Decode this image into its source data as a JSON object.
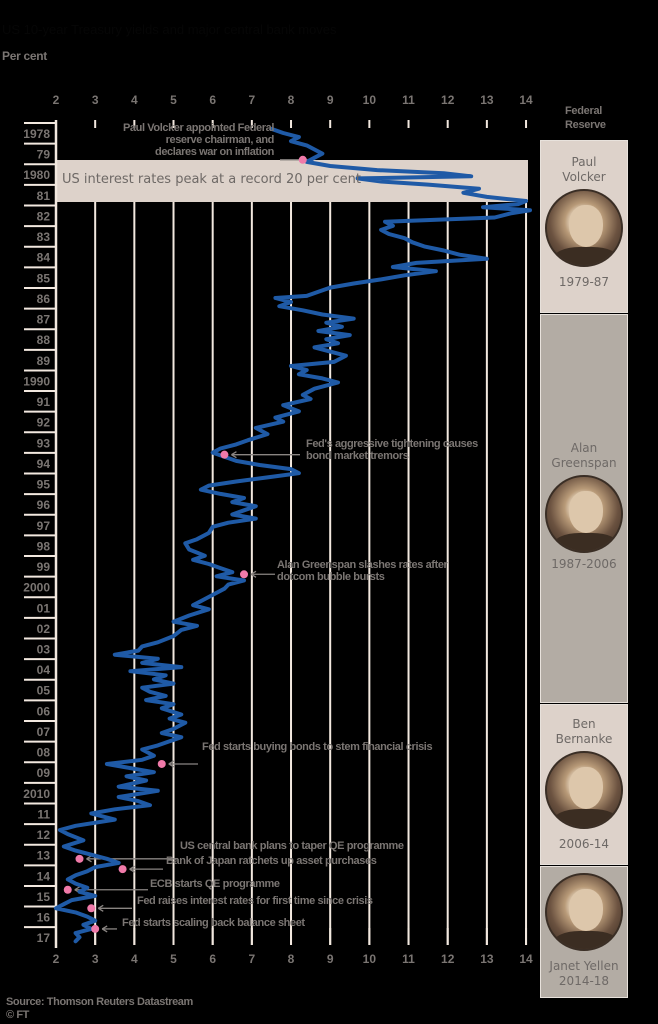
{
  "header": {
    "title": "US 10-year Treasury yields and major central bank moves",
    "unit_label": "Per cent"
  },
  "fed_header": {
    "line1": "Federal",
    "line2": "Reserve"
  },
  "band": {
    "label": "US interest rates peak at a record 20 per cent"
  },
  "panels": [
    {
      "name1": "Paul",
      "name2": "Volcker",
      "years": "1979-87"
    },
    {
      "name1": "Alan",
      "name2": "Greenspan",
      "years": "1987-2006"
    },
    {
      "name1": "Ben",
      "name2": "Bernanke",
      "years": "2006-14"
    },
    {
      "name1": "Janet Yellen",
      "name2": "",
      "years": "2014-18"
    }
  ],
  "annotations": [
    {
      "l1": "Paul Volcker appointed Federal",
      "l2": "reserve chairman, and",
      "l3": "declares war on inflation"
    },
    {
      "l1": "Fed's aggressive tightening causes",
      "l2": "bond market tremors"
    },
    {
      "l1": "Alan Greenspan slashes rates after",
      "l2": "dotcom bubble bursts"
    },
    {
      "l1": "Fed starts buying bonds to stem financial crisis"
    },
    {
      "l1": "US central bank plans to taper QE programme"
    },
    {
      "l1": "Bank of Japan ratchets up asset purchases"
    },
    {
      "l1": "ECB starts QE programme"
    },
    {
      "l1": "Fed raises interest rates for first time since crisis"
    },
    {
      "l1": "Fed starts scaling back balance sheet"
    }
  ],
  "footer": {
    "source": "Source: Thomson Reuters Datastream",
    "credit": "© FT"
  },
  "colors": {
    "line": "#1f5aa6",
    "marker": "#f07aa9",
    "grid": "#f2e8df",
    "band": "#ddd2ca",
    "panel_light": "#ddd2ca",
    "panel_dark": "#b3aca4",
    "text": "#7a7572"
  },
  "chart_data": {
    "type": "line",
    "orientation": "vertical-time (years top-to-bottom, value on x-axis)",
    "title": "",
    "xlabel": "Per cent",
    "ylabel": "Year",
    "xlim": [
      2,
      14
    ],
    "x_ticks": [
      2,
      3,
      4,
      5,
      6,
      7,
      8,
      9,
      10,
      11,
      12,
      13,
      14
    ],
    "y_tick_labels": [
      "1978",
      "79",
      "1980",
      "81",
      "82",
      "83",
      "84",
      "85",
      "86",
      "87",
      "88",
      "89",
      "1990",
      "91",
      "92",
      "93",
      "94",
      "95",
      "96",
      "97",
      "98",
      "99",
      "2000",
      "01",
      "02",
      "03",
      "04",
      "05",
      "06",
      "07",
      "08",
      "09",
      "2010",
      "11",
      "12",
      "13",
      "14",
      "15",
      "16",
      "17"
    ],
    "grid": true,
    "highlight_band": {
      "from": 1980.0,
      "to": 1981.9,
      "label": "US interest rates peak at a record 20 per cent"
    },
    "series": [
      {
        "name": "US 10-year Treasury yield",
        "points": [
          [
            1977.8,
            7.5
          ],
          [
            1978.0,
            7.8
          ],
          [
            1978.2,
            8.2
          ],
          [
            1978.4,
            8.0
          ],
          [
            1978.6,
            8.4
          ],
          [
            1978.8,
            8.6
          ],
          [
            1979.0,
            8.8
          ],
          [
            1979.2,
            8.6
          ],
          [
            1979.4,
            8.4
          ],
          [
            1979.6,
            9.0
          ],
          [
            1979.8,
            10.2
          ],
          [
            1979.95,
            11.9
          ],
          [
            1980.1,
            12.6
          ],
          [
            1980.2,
            9.7
          ],
          [
            1980.35,
            10.3
          ],
          [
            1980.5,
            11.5
          ],
          [
            1980.7,
            12.8
          ],
          [
            1980.9,
            12.4
          ],
          [
            1981.1,
            13.0
          ],
          [
            1981.3,
            14.0
          ],
          [
            1981.45,
            13.8
          ],
          [
            1981.6,
            12.9
          ],
          [
            1981.75,
            14.1
          ],
          [
            1981.9,
            13.6
          ],
          [
            1982.1,
            13.2
          ],
          [
            1982.3,
            10.4
          ],
          [
            1982.5,
            10.6
          ],
          [
            1982.7,
            10.3
          ],
          [
            1982.9,
            10.5
          ],
          [
            1983.1,
            10.9
          ],
          [
            1983.3,
            11.1
          ],
          [
            1983.5,
            11.4
          ],
          [
            1983.7,
            11.9
          ],
          [
            1983.9,
            12.3
          ],
          [
            1984.1,
            13.0
          ],
          [
            1984.3,
            11.2
          ],
          [
            1984.5,
            10.6
          ],
          [
            1984.7,
            11.7
          ],
          [
            1984.9,
            10.9
          ],
          [
            1985.1,
            10.3
          ],
          [
            1985.3,
            9.6
          ],
          [
            1985.5,
            9.0
          ],
          [
            1985.7,
            8.7
          ],
          [
            1985.9,
            8.4
          ],
          [
            1986.0,
            7.6
          ],
          [
            1986.2,
            8.0
          ],
          [
            1986.4,
            7.7
          ],
          [
            1986.6,
            8.3
          ],
          [
            1986.8,
            8.8
          ],
          [
            1987.0,
            9.6
          ],
          [
            1987.2,
            8.9
          ],
          [
            1987.4,
            9.3
          ],
          [
            1987.6,
            8.7
          ],
          [
            1987.8,
            9.5
          ],
          [
            1988.0,
            8.9
          ],
          [
            1988.2,
            9.2
          ],
          [
            1988.4,
            8.6
          ],
          [
            1988.6,
            9.0
          ],
          [
            1988.8,
            9.4
          ],
          [
            1989.1,
            9.1
          ],
          [
            1989.3,
            8.0
          ],
          [
            1989.5,
            8.4
          ],
          [
            1989.7,
            8.2
          ],
          [
            1989.9,
            8.8
          ],
          [
            1990.1,
            9.2
          ],
          [
            1990.4,
            8.6
          ],
          [
            1990.7,
            8.3
          ],
          [
            1990.9,
            8.5
          ],
          [
            1991.2,
            7.8
          ],
          [
            1991.5,
            8.2
          ],
          [
            1991.8,
            7.6
          ],
          [
            1992.0,
            7.8
          ],
          [
            1992.3,
            7.1
          ],
          [
            1992.6,
            7.4
          ],
          [
            1992.9,
            6.9
          ],
          [
            1993.1,
            6.6
          ],
          [
            1993.3,
            6.2
          ],
          [
            1993.5,
            6.0
          ],
          [
            1993.7,
            6.3
          ],
          [
            1993.9,
            6.6
          ],
          [
            1994.1,
            7.2
          ],
          [
            1994.3,
            8.0
          ],
          [
            1994.5,
            8.2
          ],
          [
            1994.7,
            7.4
          ],
          [
            1994.9,
            6.6
          ],
          [
            1995.1,
            5.9
          ],
          [
            1995.3,
            5.7
          ],
          [
            1995.5,
            6.2
          ],
          [
            1995.7,
            6.8
          ],
          [
            1995.9,
            6.5
          ],
          [
            1996.1,
            7.1
          ],
          [
            1996.3,
            6.8
          ],
          [
            1996.5,
            6.5
          ],
          [
            1996.7,
            7.1
          ],
          [
            1996.9,
            6.4
          ],
          [
            1997.1,
            6.0
          ],
          [
            1997.4,
            5.9
          ],
          [
            1997.7,
            5.6
          ],
          [
            1997.9,
            5.3
          ],
          [
            1998.2,
            5.4
          ],
          [
            1998.5,
            5.8
          ],
          [
            1998.7,
            5.5
          ],
          [
            1998.9,
            5.9
          ],
          [
            1999.1,
            6.2
          ],
          [
            1999.3,
            6.5
          ],
          [
            1999.5,
            6.1
          ],
          [
            1999.7,
            6.8
          ],
          [
            1999.9,
            6.4
          ],
          [
            2000.1,
            6.3
          ],
          [
            2000.4,
            6.0
          ],
          [
            2000.7,
            5.7
          ],
          [
            2000.9,
            5.5
          ],
          [
            2001.1,
            5.9
          ],
          [
            2001.4,
            5.4
          ],
          [
            2001.7,
            5.0
          ],
          [
            2001.9,
            5.6
          ],
          [
            2002.1,
            5.2
          ],
          [
            2002.4,
            5.0
          ],
          [
            2002.7,
            4.6
          ],
          [
            2002.9,
            4.2
          ],
          [
            2003.1,
            4.1
          ],
          [
            2003.3,
            3.5
          ],
          [
            2003.5,
            4.6
          ],
          [
            2003.7,
            4.2
          ],
          [
            2003.9,
            5.2
          ],
          [
            2004.1,
            3.9
          ],
          [
            2004.3,
            4.8
          ],
          [
            2004.5,
            4.5
          ],
          [
            2004.7,
            5.0
          ],
          [
            2004.9,
            4.2
          ],
          [
            2005.1,
            4.4
          ],
          [
            2005.3,
            4.8
          ],
          [
            2005.5,
            4.3
          ],
          [
            2005.7,
            5.0
          ],
          [
            2005.9,
            4.7
          ],
          [
            2006.2,
            5.2
          ],
          [
            2006.4,
            4.9
          ],
          [
            2006.6,
            5.3
          ],
          [
            2006.9,
            5.0
          ],
          [
            2007.1,
            4.7
          ],
          [
            2007.3,
            5.2
          ],
          [
            2007.5,
            4.9
          ],
          [
            2007.7,
            4.6
          ],
          [
            2007.9,
            4.2
          ],
          [
            2008.2,
            4.5
          ],
          [
            2008.4,
            4.2
          ],
          [
            2008.6,
            3.3
          ],
          [
            2008.8,
            3.9
          ],
          [
            2009.0,
            4.5
          ],
          [
            2009.2,
            3.8
          ],
          [
            2009.4,
            4.3
          ],
          [
            2009.7,
            3.6
          ],
          [
            2009.9,
            4.6
          ],
          [
            2010.2,
            3.6
          ],
          [
            2010.4,
            4.1
          ],
          [
            2010.6,
            4.4
          ],
          [
            2010.8,
            3.5
          ],
          [
            2011.0,
            2.9
          ],
          [
            2011.3,
            3.5
          ],
          [
            2011.6,
            2.5
          ],
          [
            2011.8,
            2.1
          ],
          [
            2012.0,
            2.3
          ],
          [
            2012.3,
            2.7
          ],
          [
            2012.6,
            2.2
          ],
          [
            2012.8,
            2.5
          ],
          [
            2013.0,
            2.9
          ],
          [
            2013.2,
            3.3
          ],
          [
            2013.4,
            3.6
          ],
          [
            2013.6,
            3.0
          ],
          [
            2013.8,
            2.8
          ],
          [
            2014.0,
            2.5
          ],
          [
            2014.2,
            2.3
          ],
          [
            2014.4,
            2.5
          ],
          [
            2014.6,
            2.8
          ],
          [
            2014.8,
            2.6
          ],
          [
            2015.0,
            3.0
          ],
          [
            2015.2,
            2.4
          ],
          [
            2015.4,
            2.2
          ],
          [
            2015.6,
            2.0
          ],
          [
            2015.8,
            2.5
          ],
          [
            2016.0,
            2.8
          ],
          [
            2016.2,
            3.0
          ],
          [
            2016.4,
            2.7
          ],
          [
            2016.6,
            2.9
          ],
          [
            2016.8,
            2.5
          ],
          [
            2017.0,
            2.6
          ],
          [
            2017.2,
            2.5
          ]
        ]
      }
    ],
    "events": [
      {
        "year": 1979.3,
        "value": 8.3,
        "label": "Paul Volcker appointed Federal reserve chairman, and declares war on inflation"
      },
      {
        "year": 1993.6,
        "value": 6.3,
        "label": "Fed's aggressive tightening causes bond market tremors"
      },
      {
        "year": 1999.4,
        "value": 6.8,
        "label": "Alan Greenspan slashes rates after dotcom bubble bursts"
      },
      {
        "year": 2008.6,
        "value": 4.7,
        "label": "Fed starts buying bonds to stem financial crisis"
      },
      {
        "year": 2013.2,
        "value": 2.6,
        "label": "US central bank plans to taper QE programme"
      },
      {
        "year": 2013.7,
        "value": 3.7,
        "label": "Bank of Japan ratchets up asset purchases"
      },
      {
        "year": 2014.7,
        "value": 2.3,
        "label": "ECB starts QE programme"
      },
      {
        "year": 2015.6,
        "value": 2.9,
        "label": "Fed raises interest rates for first time since crisis"
      },
      {
        "year": 2016.6,
        "value": 3.0,
        "label": "Fed starts scaling back balance sheet"
      }
    ],
    "fed_chairs": [
      {
        "name": "Paul Volcker",
        "years": "1979-87"
      },
      {
        "name": "Alan Greenspan",
        "years": "1987-2006"
      },
      {
        "name": "Ben Bernanke",
        "years": "2006-14"
      },
      {
        "name": "Janet Yellen",
        "years": "2014-18"
      }
    ],
    "source": "Thomson Reuters Datastream"
  }
}
